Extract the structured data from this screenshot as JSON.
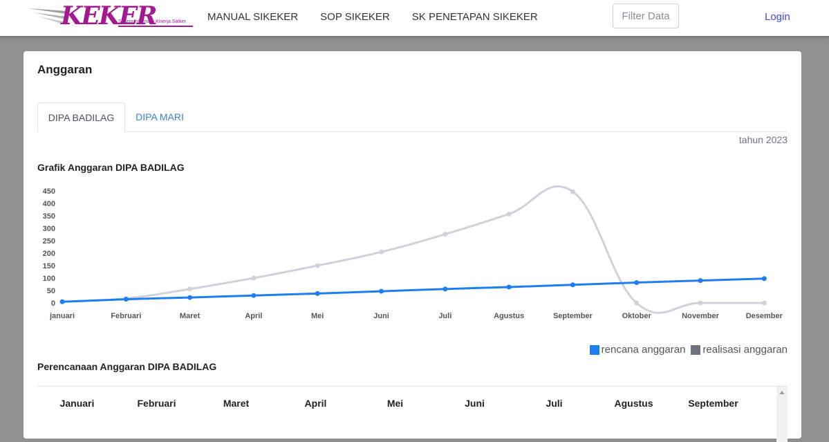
{
  "navbar": {
    "logo_text": "KEKER",
    "logo_subtitle": "Sistem Informasi Kinerja Satker",
    "links": [
      "MANUAL SIKEKER",
      "SOP SIKEKER",
      "SK PENETAPAN SIKEKER"
    ],
    "filter_label": "Filter Data",
    "login_label": "Login"
  },
  "card": {
    "title": "Anggaran",
    "tabs": [
      {
        "label": "DIPA BADILAG",
        "active": true
      },
      {
        "label": "DIPA MARI",
        "active": false
      }
    ],
    "year_label": "tahun 2023",
    "chart_title": "Grafik Anggaran DIPA BADILAG",
    "table_title": "Perencanaan Anggaran DIPA BADILAG",
    "table_headers": [
      "Januari",
      "Februari",
      "Maret",
      "April",
      "Mei",
      "Juni",
      "Juli",
      "Agustus",
      "September"
    ]
  },
  "colors": {
    "rencana": "#1e7ef0",
    "realisasi": "#cfd3d8",
    "realisasi_legend": "#6c757d",
    "link": "#3f4adb",
    "logo": "#a3198f"
  },
  "chart_data": {
    "type": "line",
    "categories": [
      "januari",
      "Februari",
      "Maret",
      "April",
      "Mei",
      "Juni",
      "Juli",
      "Agustus",
      "September",
      "Oktober",
      "November",
      "Desember"
    ],
    "yticks": [
      0,
      50,
      100,
      150,
      200,
      250,
      300,
      350,
      400,
      450
    ],
    "ylim": [
      0,
      450
    ],
    "series": [
      {
        "name": "rencana anggaran",
        "color": "#1e7ef0",
        "values": [
          5,
          15,
          22,
          30,
          38,
          47,
          56,
          64,
          73,
          82,
          90,
          98
        ]
      },
      {
        "name": "realisasi anggaran",
        "color": "#cfd3d8",
        "values": [
          5,
          18,
          56,
          100,
          150,
          205,
          276,
          357,
          447,
          0,
          0,
          0
        ]
      }
    ],
    "legend_position": "bottom-right",
    "grid": false
  }
}
